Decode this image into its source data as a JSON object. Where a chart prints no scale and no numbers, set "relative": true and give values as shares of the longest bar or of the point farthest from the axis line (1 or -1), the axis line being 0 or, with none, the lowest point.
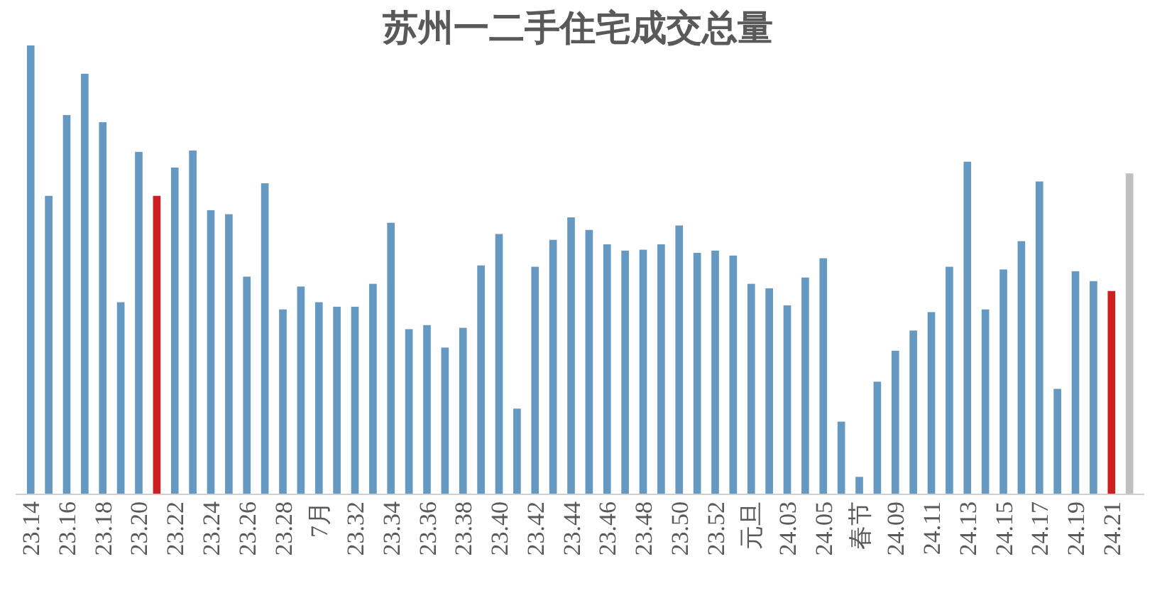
{
  "chart_data": {
    "type": "bar",
    "title": "苏州一二手住宅成交总量",
    "relative": true,
    "categories": [
      "23.14",
      null,
      "23.16",
      null,
      "23.18",
      null,
      "23.20",
      null,
      "23.22",
      null,
      "23.24",
      null,
      "23.26",
      null,
      "23.28",
      null,
      "7月",
      null,
      "23.32",
      null,
      "23.34",
      null,
      "23.36",
      null,
      "23.38",
      null,
      "23.40",
      null,
      "23.42",
      null,
      "23.44",
      null,
      "23.46",
      null,
      "23.48",
      null,
      "23.50",
      null,
      "23.52",
      null,
      "元旦",
      null,
      "24.03",
      null,
      "24.05",
      null,
      "春节",
      null,
      "24.09",
      null,
      "24.11",
      null,
      "24.13",
      null,
      "24.15",
      null,
      "24.17",
      null,
      "24.19",
      null,
      "24.21",
      null
    ],
    "values": [
      1.0,
      0.665,
      0.845,
      0.937,
      0.829,
      0.428,
      0.763,
      0.665,
      0.728,
      0.766,
      0.633,
      0.624,
      0.485,
      0.693,
      0.412,
      0.463,
      0.428,
      0.418,
      0.418,
      0.469,
      0.605,
      0.368,
      0.377,
      0.327,
      0.371,
      0.51,
      0.58,
      0.191,
      0.507,
      0.567,
      0.617,
      0.589,
      0.557,
      0.543,
      0.545,
      0.557,
      0.599,
      0.538,
      0.543,
      0.532,
      0.469,
      0.459,
      0.421,
      0.483,
      0.526,
      0.162,
      0.039,
      0.251,
      0.32,
      0.365,
      0.406,
      0.507,
      0.741,
      0.412,
      0.501,
      0.564,
      0.697,
      0.235,
      0.497,
      0.475,
      0.453,
      0.715
    ],
    "colors": [
      "#6699c2",
      "#6699c2",
      "#6699c2",
      "#6699c2",
      "#6699c2",
      "#6699c2",
      "#6699c2",
      "#cc1f1f",
      "#6699c2",
      "#6699c2",
      "#6699c2",
      "#6699c2",
      "#6699c2",
      "#6699c2",
      "#6699c2",
      "#6699c2",
      "#6699c2",
      "#6699c2",
      "#6699c2",
      "#6699c2",
      "#6699c2",
      "#6699c2",
      "#6699c2",
      "#6699c2",
      "#6699c2",
      "#6699c2",
      "#6699c2",
      "#6699c2",
      "#6699c2",
      "#6699c2",
      "#6699c2",
      "#6699c2",
      "#6699c2",
      "#6699c2",
      "#6699c2",
      "#6699c2",
      "#6699c2",
      "#6699c2",
      "#6699c2",
      "#6699c2",
      "#6699c2",
      "#6699c2",
      "#6699c2",
      "#6699c2",
      "#6699c2",
      "#6699c2",
      "#6699c2",
      "#6699c2",
      "#6699c2",
      "#6699c2",
      "#6699c2",
      "#6699c2",
      "#6699c2",
      "#6699c2",
      "#6699c2",
      "#6699c2",
      "#6699c2",
      "#6699c2",
      "#6699c2",
      "#6699c2",
      "#cc1f1f",
      "#bfbfbf"
    ]
  }
}
